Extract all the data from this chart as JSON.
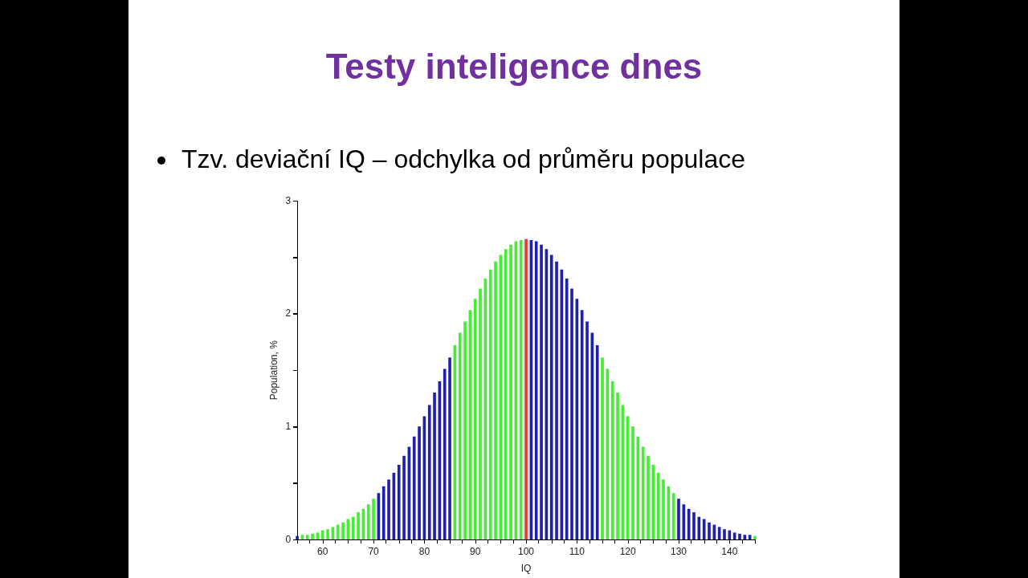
{
  "chart_data": {
    "type": "bar",
    "title": "Testy inteligence dnes",
    "subtitle": "Tzv. deviační IQ – odchylka od průměru populace",
    "xlabel": "IQ",
    "ylabel": "Population, %",
    "x": [
      55,
      56,
      57,
      58,
      59,
      60,
      61,
      62,
      63,
      64,
      65,
      66,
      67,
      68,
      69,
      70,
      71,
      72,
      73,
      74,
      75,
      76,
      77,
      78,
      79,
      80,
      81,
      82,
      83,
      84,
      85,
      86,
      87,
      88,
      89,
      90,
      91,
      92,
      93,
      94,
      95,
      96,
      97,
      98,
      99,
      100,
      101,
      102,
      103,
      104,
      105,
      106,
      107,
      108,
      109,
      110,
      111,
      112,
      113,
      114,
      115,
      116,
      117,
      118,
      119,
      120,
      121,
      122,
      123,
      124,
      125,
      126,
      127,
      128,
      129,
      130,
      131,
      132,
      133,
      134,
      135,
      136,
      137,
      138,
      139,
      140,
      141,
      142,
      143,
      144,
      145
    ],
    "values": [
      0.03,
      0.04,
      0.04,
      0.05,
      0.06,
      0.08,
      0.09,
      0.11,
      0.13,
      0.15,
      0.18,
      0.2,
      0.24,
      0.27,
      0.31,
      0.36,
      0.41,
      0.47,
      0.53,
      0.59,
      0.66,
      0.74,
      0.82,
      0.91,
      1.0,
      1.09,
      1.19,
      1.3,
      1.4,
      1.51,
      1.61,
      1.72,
      1.83,
      1.93,
      2.03,
      2.13,
      2.22,
      2.31,
      2.39,
      2.46,
      2.52,
      2.57,
      2.61,
      2.64,
      2.65,
      2.66,
      2.65,
      2.64,
      2.61,
      2.57,
      2.52,
      2.46,
      2.39,
      2.31,
      2.22,
      2.13,
      2.03,
      1.93,
      1.83,
      1.72,
      1.61,
      1.51,
      1.4,
      1.3,
      1.19,
      1.09,
      1.0,
      0.91,
      0.82,
      0.74,
      0.66,
      0.59,
      0.53,
      0.47,
      0.41,
      0.36,
      0.31,
      0.27,
      0.24,
      0.2,
      0.18,
      0.15,
      0.13,
      0.11,
      0.09,
      0.08,
      0.06,
      0.05,
      0.04,
      0.04,
      0.03
    ],
    "colors": [
      "#2020b0",
      "#44ee33",
      "#44ee33",
      "#44ee33",
      "#44ee33",
      "#44ee33",
      "#44ee33",
      "#44ee33",
      "#44ee33",
      "#44ee33",
      "#44ee33",
      "#44ee33",
      "#44ee33",
      "#44ee33",
      "#44ee33",
      "#44ee33",
      "#2020b0",
      "#2020b0",
      "#2020b0",
      "#2020b0",
      "#2020b0",
      "#2020b0",
      "#2020b0",
      "#2020b0",
      "#2020b0",
      "#2020b0",
      "#2020b0",
      "#2020b0",
      "#2020b0",
      "#2020b0",
      "#2020b0",
      "#44ee33",
      "#44ee33",
      "#44ee33",
      "#44ee33",
      "#44ee33",
      "#44ee33",
      "#44ee33",
      "#44ee33",
      "#44ee33",
      "#44ee33",
      "#44ee33",
      "#44ee33",
      "#44ee33",
      "#44ee33",
      "#ee3333",
      "#2020b0",
      "#2020b0",
      "#2020b0",
      "#2020b0",
      "#2020b0",
      "#2020b0",
      "#2020b0",
      "#2020b0",
      "#2020b0",
      "#2020b0",
      "#2020b0",
      "#2020b0",
      "#2020b0",
      "#2020b0",
      "#44ee33",
      "#44ee33",
      "#44ee33",
      "#44ee33",
      "#44ee33",
      "#44ee33",
      "#44ee33",
      "#44ee33",
      "#44ee33",
      "#44ee33",
      "#44ee33",
      "#44ee33",
      "#44ee33",
      "#44ee33",
      "#44ee33",
      "#2020b0",
      "#2020b0",
      "#2020b0",
      "#2020b0",
      "#2020b0",
      "#2020b0",
      "#2020b0",
      "#2020b0",
      "#2020b0",
      "#2020b0",
      "#2020b0",
      "#2020b0",
      "#2020b0",
      "#2020b0",
      "#2020b0",
      "#44ee33"
    ],
    "xlim": [
      55,
      145
    ],
    "xticks": [
      {
        "value": 55,
        "label": null
      },
      60,
      {
        "value": 65,
        "label": null
      },
      70,
      {
        "value": 75,
        "label": null
      },
      80,
      {
        "value": 85,
        "label": null
      },
      90,
      {
        "value": 95,
        "label": null
      },
      100,
      {
        "value": 105,
        "label": null
      },
      110,
      {
        "value": 115,
        "label": null
      },
      120,
      {
        "value": 125,
        "label": null
      },
      130,
      {
        "value": 135,
        "label": null
      },
      140,
      {
        "value": 145,
        "label": null
      }
    ],
    "ylim": [
      0,
      3
    ],
    "yticks": [
      0,
      {
        "value": 0.5,
        "label": null
      },
      1,
      {
        "value": 1.5,
        "label": null
      },
      2,
      {
        "value": 2.5,
        "label": null
      },
      3
    ]
  }
}
